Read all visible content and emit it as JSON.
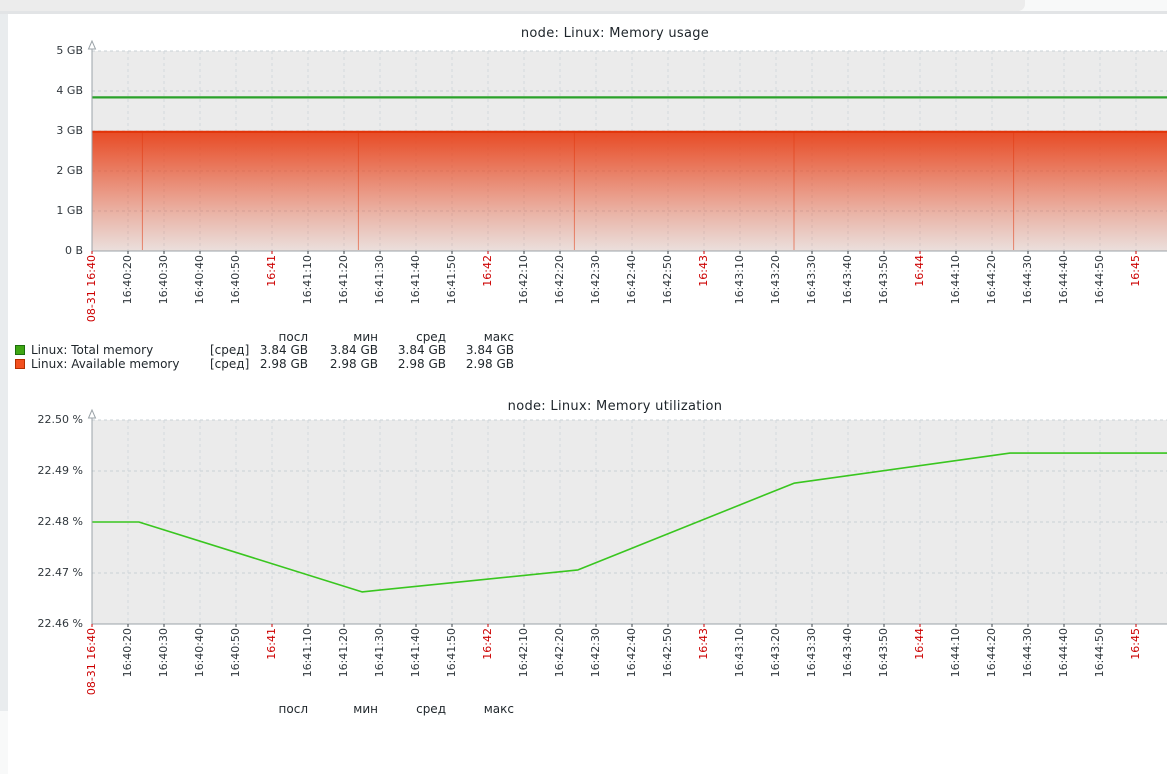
{
  "page": {
    "background": "#f8f9f9",
    "panel_background": "#ffffff",
    "plot_background": "#EBEBEB",
    "red_time_label_color": "#cc0000",
    "axis_color": "#9BA3A8"
  },
  "chart_data": [
    {
      "type": "line",
      "title": "node: Linux: Memory usage",
      "ylim_gb": [
        0,
        5
      ],
      "grid": true,
      "legend_position": "bottom",
      "y_ticks": [
        "5 GB",
        "4 GB",
        "3 GB",
        "2 GB",
        "1 GB",
        "0 B"
      ],
      "x_ticks": [
        {
          "label": "08-31 16:40",
          "red": true,
          "sec": 0
        },
        {
          "label": "16:40:20",
          "red": false,
          "sec": 10
        },
        {
          "label": "16:40:30",
          "red": false,
          "sec": 20
        },
        {
          "label": "16:40:40",
          "red": false,
          "sec": 30
        },
        {
          "label": "16:40:50",
          "red": false,
          "sec": 40
        },
        {
          "label": "16:41",
          "red": true,
          "sec": 50
        },
        {
          "label": "16:41:10",
          "red": false,
          "sec": 60
        },
        {
          "label": "16:41:20",
          "red": false,
          "sec": 70
        },
        {
          "label": "16:41:30",
          "red": false,
          "sec": 80
        },
        {
          "label": "16:41:40",
          "red": false,
          "sec": 90
        },
        {
          "label": "16:41:50",
          "red": false,
          "sec": 100
        },
        {
          "label": "16:42",
          "red": true,
          "sec": 110
        },
        {
          "label": "16:42:10",
          "red": false,
          "sec": 120
        },
        {
          "label": "16:42:20",
          "red": false,
          "sec": 130
        },
        {
          "label": "16:42:30",
          "red": false,
          "sec": 140
        },
        {
          "label": "16:42:40",
          "red": false,
          "sec": 150
        },
        {
          "label": "16:42:50",
          "red": false,
          "sec": 160
        },
        {
          "label": "16:43",
          "red": true,
          "sec": 170
        },
        {
          "label": "16:43:10",
          "red": false,
          "sec": 180
        },
        {
          "label": "16:43:20",
          "red": false,
          "sec": 190
        },
        {
          "label": "16:43:30",
          "red": false,
          "sec": 200
        },
        {
          "label": "16:43:40",
          "red": false,
          "sec": 210
        },
        {
          "label": "16:43:50",
          "red": false,
          "sec": 220
        },
        {
          "label": "16:44",
          "red": true,
          "sec": 230
        },
        {
          "label": "16:44:10",
          "red": false,
          "sec": 240
        },
        {
          "label": "16:44:20",
          "red": false,
          "sec": 250
        },
        {
          "label": "16:44:30",
          "red": false,
          "sec": 260
        },
        {
          "label": "16:44:40",
          "red": false,
          "sec": 270
        },
        {
          "label": "16:44:50",
          "red": false,
          "sec": 280
        },
        {
          "label": "16:45",
          "red": true,
          "sec": 290
        }
      ],
      "series": [
        {
          "name": "Linux: Total memory",
          "style": "line",
          "color": "#2AA22A",
          "value_gb": 3.84
        },
        {
          "name": "Linux: Available memory",
          "style": "gradient-area",
          "color": "#E23409",
          "value_gb": 2.98,
          "chunk_boundaries_sec": [
            14,
            74,
            134,
            195,
            256
          ]
        }
      ],
      "legend": {
        "headers": [
          "посл",
          "мин",
          "сред",
          "макс"
        ],
        "rows": [
          {
            "swatch_color": "#3FA613",
            "swatch_border": "#1C6E0D",
            "label": "Linux: Total memory",
            "fn": "[сред]",
            "values": [
              "3.84 GB",
              "3.84 GB",
              "3.84 GB",
              "3.84 GB"
            ]
          },
          {
            "swatch_color": "#F2501F",
            "swatch_border": "#B33000",
            "label": "Linux: Available memory",
            "fn": "[сред]",
            "values": [
              "2.98 GB",
              "2.98 GB",
              "2.98 GB",
              "2.98 GB"
            ]
          }
        ]
      }
    },
    {
      "type": "line",
      "title": "node: Linux: Memory utilization",
      "ylim_pct": [
        22.46,
        22.5
      ],
      "grid": true,
      "legend_position": "bottom",
      "y_ticks": [
        "22.50 %",
        "22.49 %",
        "22.48 %",
        "22.47 %",
        "22.46 %"
      ],
      "x_ticks": [
        {
          "label": "08-31 16:40",
          "red": true,
          "sec": 0
        },
        {
          "label": "16:40:20",
          "red": false,
          "sec": 10
        },
        {
          "label": "16:40:30",
          "red": false,
          "sec": 20
        },
        {
          "label": "16:40:40",
          "red": false,
          "sec": 30
        },
        {
          "label": "16:40:50",
          "red": false,
          "sec": 40
        },
        {
          "label": "16:41",
          "red": true,
          "sec": 50
        },
        {
          "label": "16:41:10",
          "red": false,
          "sec": 60
        },
        {
          "label": "16:41:20",
          "red": false,
          "sec": 70
        },
        {
          "label": "16:41:30",
          "red": false,
          "sec": 80
        },
        {
          "label": "16:41:40",
          "red": false,
          "sec": 90
        },
        {
          "label": "16:41:50",
          "red": false,
          "sec": 100
        },
        {
          "label": "16:42",
          "red": true,
          "sec": 110
        },
        {
          "label": "16:42:10",
          "red": false,
          "sec": 120
        },
        {
          "label": "16:42:20",
          "red": false,
          "sec": 130
        },
        {
          "label": "16:42:30",
          "red": false,
          "sec": 140
        },
        {
          "label": "16:42:40",
          "red": false,
          "sec": 150
        },
        {
          "label": "16:42:50",
          "red": false,
          "sec": 160
        },
        {
          "label": "16:43",
          "red": true,
          "sec": 170
        },
        {
          "label": "16:43:10",
          "red": false,
          "sec": 180
        },
        {
          "label": "16:43:20",
          "red": false,
          "sec": 190
        },
        {
          "label": "16:43:30",
          "red": false,
          "sec": 200
        },
        {
          "label": "16:43:40",
          "red": false,
          "sec": 210
        },
        {
          "label": "16:43:50",
          "red": false,
          "sec": 220
        },
        {
          "label": "16:44",
          "red": true,
          "sec": 230
        },
        {
          "label": "16:44:10",
          "red": false,
          "sec": 240
        },
        {
          "label": "16:44:20",
          "red": false,
          "sec": 250
        },
        {
          "label": "16:44:30",
          "red": false,
          "sec": 260
        },
        {
          "label": "16:44:40",
          "red": false,
          "sec": 270
        },
        {
          "label": "16:44:50",
          "red": false,
          "sec": 280
        },
        {
          "label": "16:45",
          "red": true,
          "sec": 290
        }
      ],
      "series": [
        {
          "name": "Linux: Memory utilization",
          "style": "line",
          "color": "#39C61F",
          "points": [
            {
              "sec": 0,
              "pct": 22.48
            },
            {
              "sec": 13,
              "pct": 22.48
            },
            {
              "sec": 75,
              "pct": 22.4663
            },
            {
              "sec": 135,
              "pct": 22.4706
            },
            {
              "sec": 195,
              "pct": 22.4876
            },
            {
              "sec": 255,
              "pct": 22.4935
            },
            {
              "sec": 309,
              "pct": 22.4935
            }
          ]
        }
      ],
      "legend": {
        "headers": [
          "посл",
          "мин",
          "сред",
          "макс"
        ],
        "rows": []
      }
    }
  ]
}
